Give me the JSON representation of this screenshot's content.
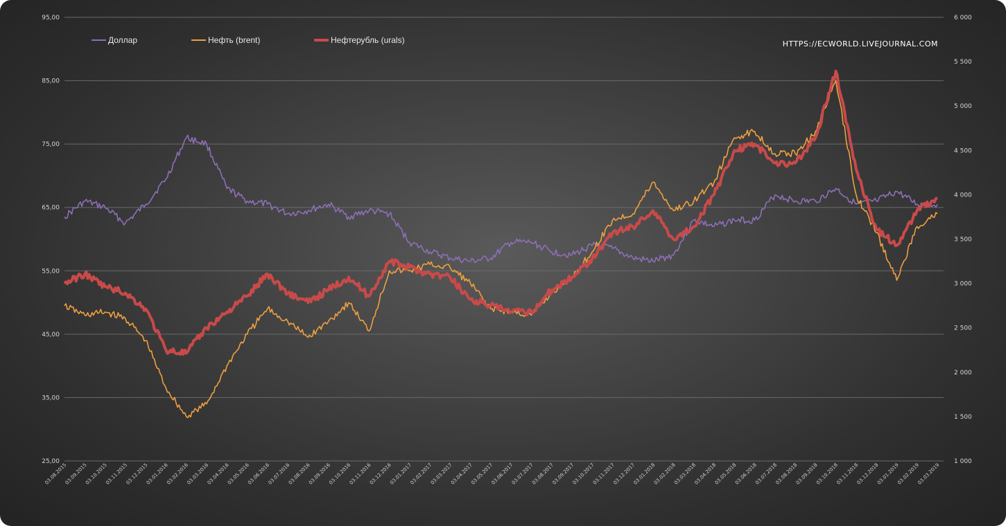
{
  "watermark": "HTTPS://ECWORLD.LIVEJOURNAL.COM",
  "colors": {
    "dollar": "#8e6fb8",
    "brent": "#f0a040",
    "urals": "#c94a4a",
    "grid": "#6a6a6a"
  },
  "chart_data": {
    "type": "line",
    "grid": "horizontal",
    "legend_position": "top-left",
    "x_ticks": [
      "03.08.2015",
      "03.09.2015",
      "03.10.2015",
      "03.11.2015",
      "03.12.2015",
      "03.01.2016",
      "03.02.2016",
      "03.03.2016",
      "03.04.2016",
      "03.05.2016",
      "03.06.2016",
      "03.07.2016",
      "03.08.2016",
      "03.09.2016",
      "03.10.2016",
      "03.11.2016",
      "03.12.2016",
      "03.01.2017",
      "03.02.2017",
      "03.03.2017",
      "03.04.2017",
      "03.05.2017",
      "03.06.2017",
      "03.07.2017",
      "03.08.2017",
      "03.09.2017",
      "03.10.2017",
      "03.11.2017",
      "03.12.2017",
      "03.01.2018",
      "03.02.2018",
      "03.03.2018",
      "03.04.2018",
      "03.05.2018",
      "03.06.2018",
      "03.07.2018",
      "03.08.2018",
      "03.09.2018",
      "03.10.2018",
      "03.11.2018",
      "03.12.2018",
      "03.01.2019",
      "03.02.2019",
      "03.03.2019"
    ],
    "y_left": {
      "ticks": [
        "95,00",
        "85,00",
        "75,00",
        "65,00",
        "55,00",
        "45,00",
        "35,00",
        "25,00"
      ],
      "range": [
        25,
        95
      ]
    },
    "y_right": {
      "ticks": [
        "6 000",
        "5 500",
        "5 000",
        "4 500",
        "4 000",
        "3 500",
        "3 000",
        "2 500",
        "2 000",
        "1 500",
        "1 000"
      ],
      "range": [
        1000,
        6000
      ]
    },
    "series": [
      {
        "name": "Доллар",
        "axis": "left",
        "color": "#8e6fb8",
        "values": [
          63.5,
          66,
          65,
          62.5,
          65.5,
          69.5,
          76,
          75,
          68,
          66,
          65.5,
          64,
          64.5,
          65.5,
          63.5,
          64.5,
          64,
          59.5,
          58,
          57,
          56.5,
          57,
          59.5,
          59.5,
          58,
          57.5,
          59,
          58.5,
          57,
          56.5,
          57.5,
          63,
          62,
          63,
          63,
          67,
          66,
          66,
          68,
          65.5,
          66,
          67.5,
          65.5,
          65.5
        ]
      },
      {
        "name": "Нефть (brent)",
        "axis": "left",
        "color": "#f0a040",
        "values": [
          49.5,
          48,
          48.5,
          47.5,
          44,
          36.5,
          32,
          34,
          40,
          45,
          49,
          47,
          44.5,
          47,
          50,
          45.5,
          55,
          55,
          56,
          55.5,
          53,
          49,
          48.5,
          48,
          51.5,
          54,
          58,
          63,
          64,
          69,
          64.5,
          66,
          69,
          76,
          77,
          73.5,
          73.5,
          77,
          85,
          67,
          61,
          53.5,
          62,
          64
        ]
      },
      {
        "name": "Нефтерубль (urals)",
        "axis": "left",
        "color": "#c94a4a",
        "values": [
          53,
          54.5,
          52.5,
          51.5,
          49,
          42.5,
          42,
          46,
          48.5,
          51,
          54.5,
          51.5,
          50,
          52,
          54,
          51,
          56.5,
          55.5,
          54.5,
          54,
          50.5,
          49.5,
          48.5,
          48.5,
          52,
          54,
          57,
          61,
          62,
          64.5,
          60,
          62,
          67,
          74,
          75,
          72,
          72,
          76,
          86.5,
          71,
          61.5,
          59,
          64.5,
          66.5
        ]
      }
    ]
  }
}
